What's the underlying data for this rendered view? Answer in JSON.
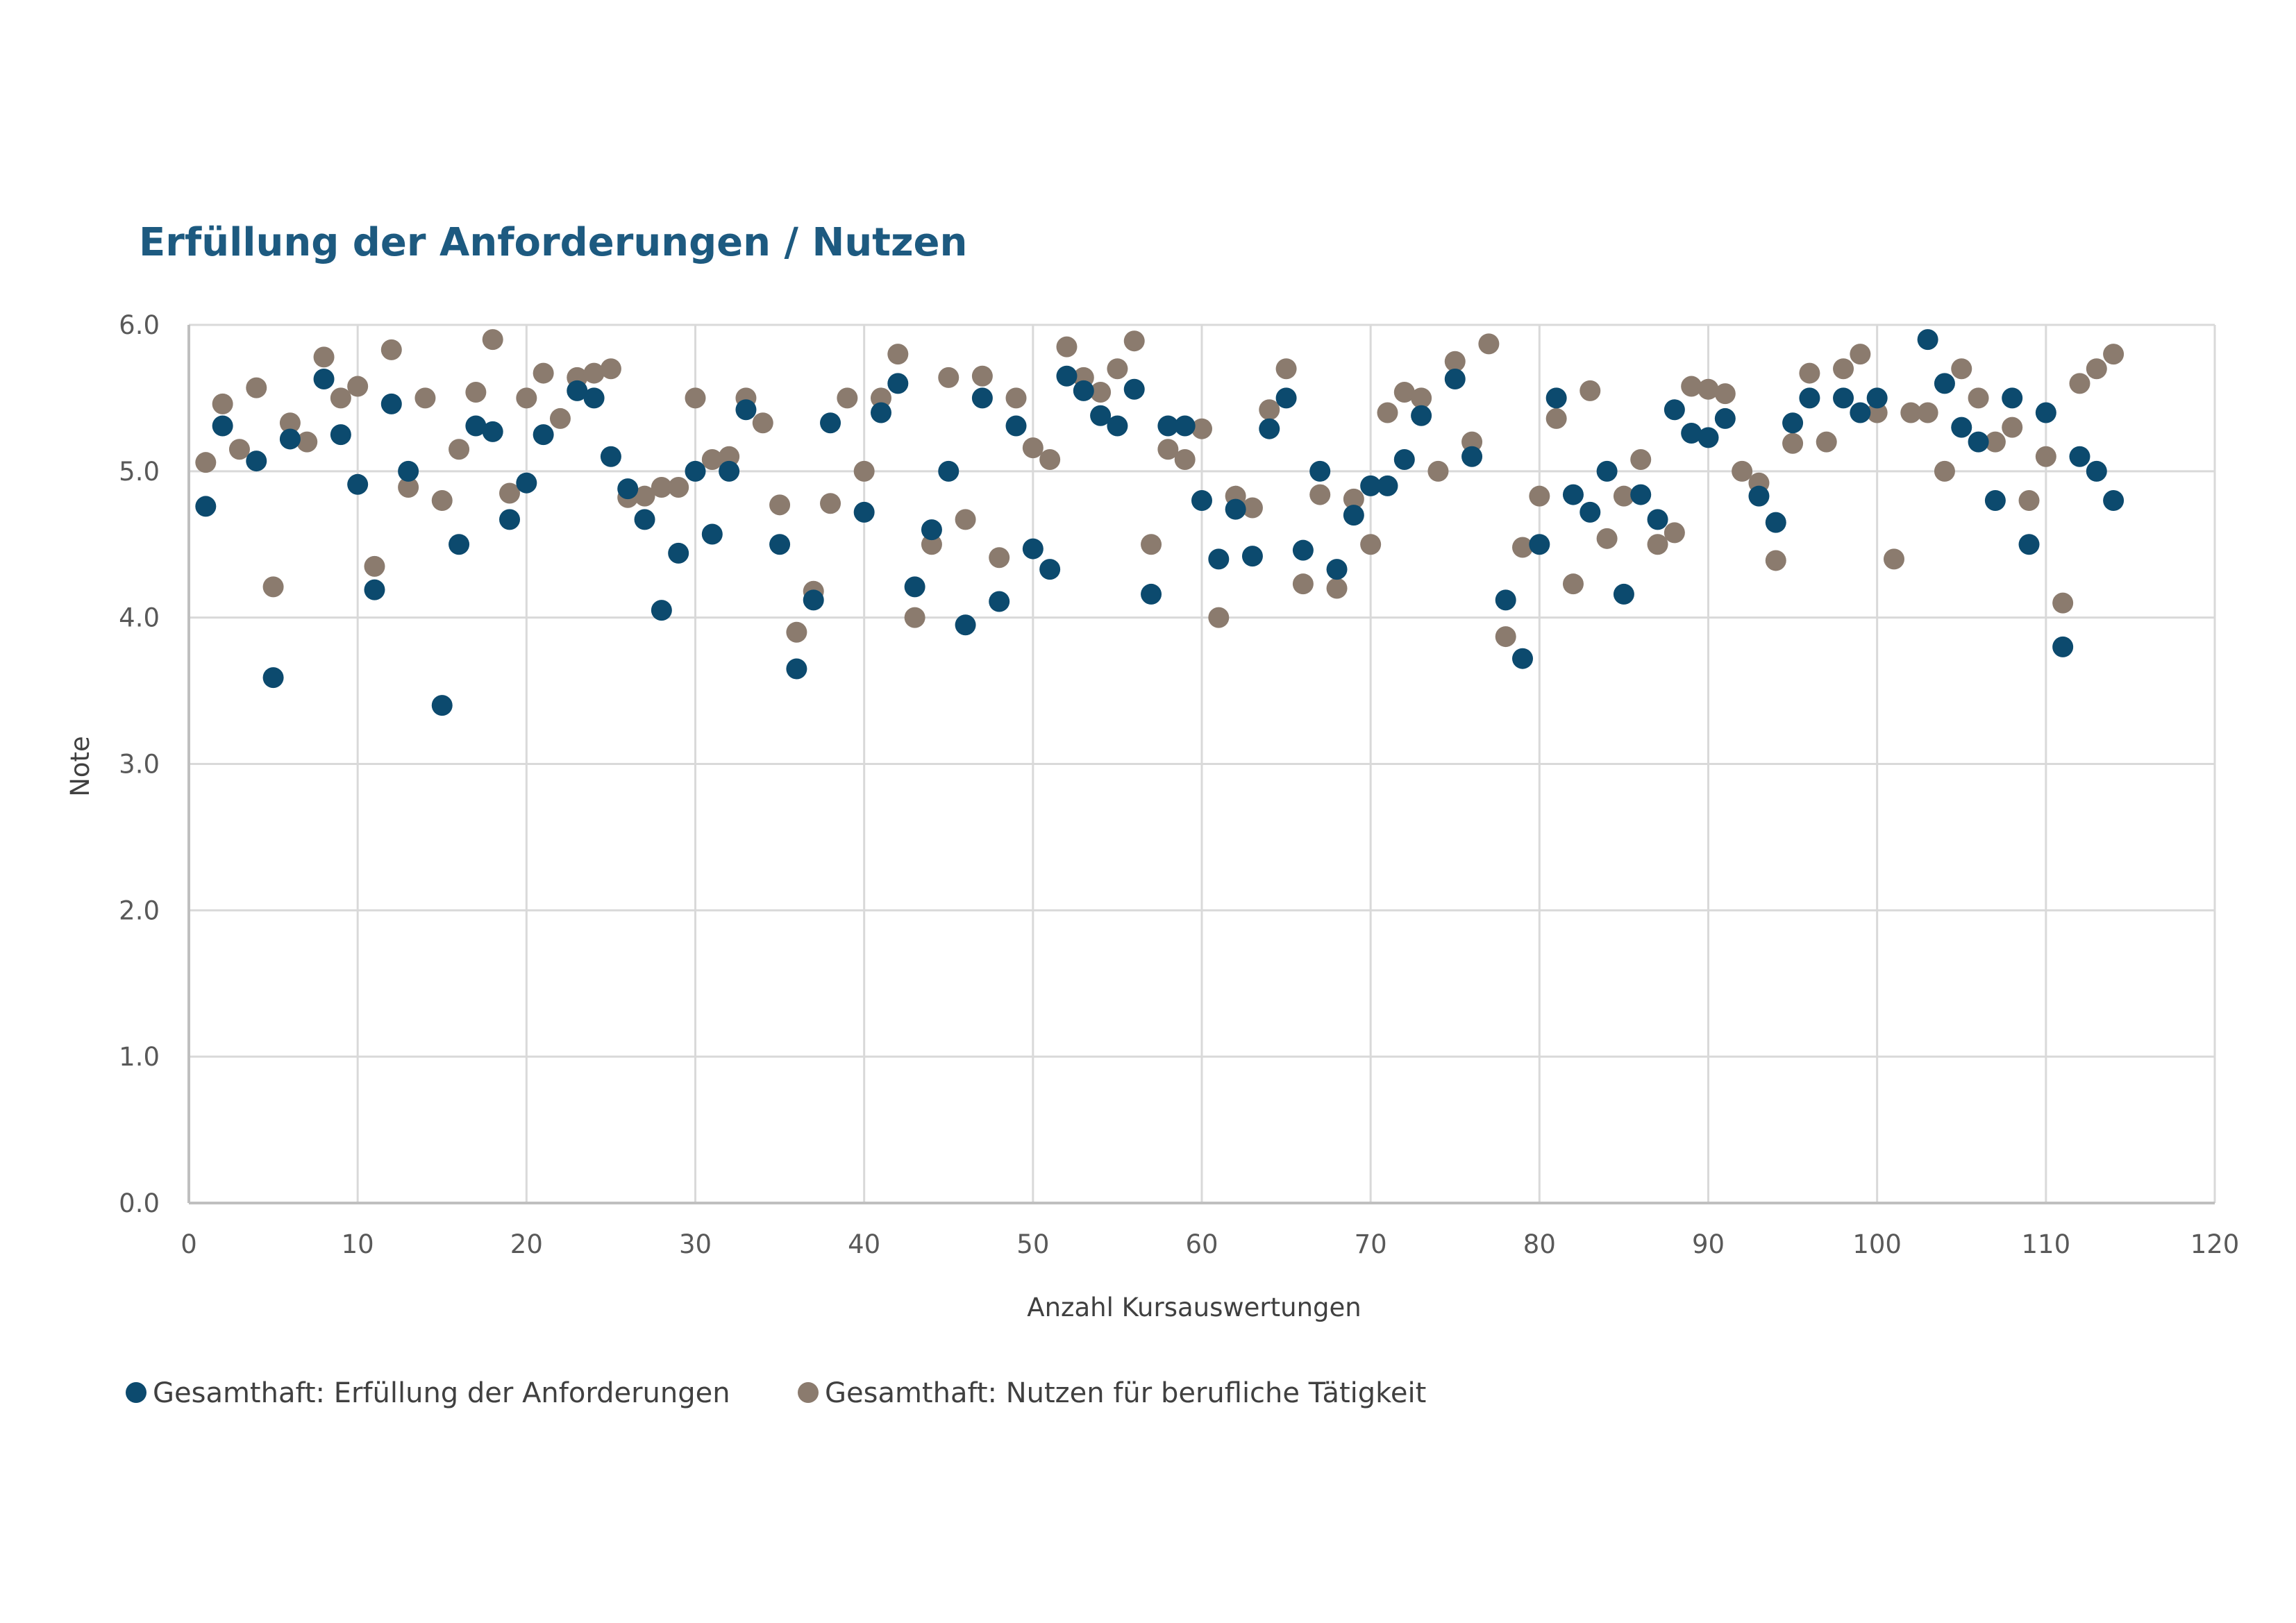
{
  "chart_data": {
    "type": "scatter",
    "title": "Erfüllung der Anforderungen / Nutzen",
    "xlabel": "Anzahl Kursauswertungen",
    "ylabel": "Note",
    "xlim": [
      0,
      120
    ],
    "ylim": [
      0.0,
      6.0
    ],
    "xticks": [
      "0",
      "10",
      "20",
      "30",
      "40",
      "50",
      "60",
      "70",
      "80",
      "90",
      "100",
      "110",
      "120"
    ],
    "yticks": [
      "0.0",
      "1.0",
      "2.0",
      "3.0",
      "4.0",
      "5.0",
      "6.0"
    ],
    "grid": true,
    "legend_position": "bottom",
    "colors": {
      "title": "#1d5a80",
      "grid": "#d9d9d9",
      "axis": "#bfbfbf"
    },
    "series": [
      {
        "name": "Gesamthaft: Erfüllung der Anforderungen",
        "color": "#0c4a6e",
        "x": [
          1,
          2,
          4,
          5,
          6,
          8,
          9,
          10,
          11,
          12,
          13,
          15,
          16,
          17,
          18,
          19,
          20,
          21,
          23,
          24,
          25,
          26,
          27,
          28,
          29,
          30,
          31,
          32,
          33,
          35,
          36,
          37,
          38,
          40,
          41,
          42,
          43,
          44,
          45,
          46,
          47,
          48,
          49,
          50,
          51,
          52,
          53,
          54,
          55,
          56,
          57,
          58,
          59,
          60,
          61,
          62,
          63,
          64,
          65,
          66,
          67,
          68,
          69,
          70,
          71,
          72,
          73,
          75,
          76,
          78,
          79,
          80,
          81,
          82,
          83,
          84,
          85,
          86,
          87,
          88,
          89,
          90,
          91,
          93,
          94,
          95,
          96,
          98,
          99,
          100,
          103,
          104,
          105,
          106,
          107,
          108,
          109,
          110,
          111,
          112,
          113,
          114
        ],
        "y": [
          4.76,
          5.31,
          5.07,
          3.59,
          5.22,
          5.63,
          5.25,
          4.91,
          4.19,
          5.46,
          5.0,
          3.4,
          4.5,
          5.31,
          5.27,
          4.67,
          4.92,
          5.25,
          5.55,
          5.5,
          5.1,
          4.88,
          4.67,
          4.05,
          4.44,
          5.0,
          4.57,
          5.0,
          5.42,
          4.5,
          3.65,
          4.12,
          5.33,
          4.72,
          5.4,
          5.6,
          4.21,
          4.6,
          5.0,
          3.95,
          5.5,
          4.11,
          5.31,
          4.47,
          4.33,
          5.65,
          5.55,
          5.38,
          5.31,
          5.56,
          4.16,
          5.31,
          5.31,
          4.8,
          4.4,
          4.74,
          4.42,
          5.29,
          5.5,
          4.46,
          5.0,
          4.33,
          4.7,
          4.9,
          4.9,
          5.08,
          5.38,
          5.63,
          5.1,
          4.12,
          3.72,
          4.5,
          5.5,
          4.84,
          4.72,
          5.0,
          4.16,
          4.84,
          4.67,
          5.42,
          5.26,
          5.23,
          5.36,
          4.83,
          4.65,
          5.33,
          5.5,
          5.5,
          5.4,
          5.5,
          5.9,
          5.6,
          5.3,
          5.2,
          4.8,
          5.5,
          4.5,
          5.4,
          3.8,
          5.1,
          5.0,
          4.8
        ]
      },
      {
        "name": "Gesamthaft: Nutzen für berufliche Tätigkeit",
        "color": "#8b7b6e",
        "x": [
          1,
          2,
          3,
          4,
          5,
          6,
          7,
          8,
          9,
          10,
          11,
          12,
          13,
          14,
          15,
          16,
          17,
          18,
          19,
          20,
          21,
          22,
          23,
          24,
          25,
          26,
          27,
          28,
          29,
          30,
          31,
          32,
          33,
          34,
          35,
          36,
          37,
          38,
          39,
          40,
          41,
          42,
          43,
          44,
          45,
          46,
          47,
          48,
          49,
          50,
          51,
          52,
          53,
          54,
          55,
          56,
          57,
          58,
          59,
          60,
          61,
          62,
          63,
          64,
          65,
          66,
          67,
          68,
          69,
          70,
          71,
          72,
          73,
          74,
          75,
          76,
          77,
          78,
          79,
          80,
          81,
          82,
          83,
          84,
          85,
          86,
          87,
          88,
          89,
          90,
          91,
          92,
          93,
          94,
          95,
          96,
          97,
          98,
          99,
          100,
          101,
          102,
          103,
          104,
          105,
          106,
          107,
          108,
          109,
          110,
          111,
          112,
          113,
          114
        ],
        "y": [
          5.06,
          5.46,
          5.15,
          5.57,
          4.21,
          5.33,
          5.2,
          5.78,
          5.5,
          5.58,
          4.35,
          5.83,
          4.89,
          5.5,
          4.8,
          5.15,
          5.54,
          5.9,
          4.85,
          5.5,
          5.67,
          5.36,
          5.64,
          5.67,
          5.7,
          4.82,
          4.83,
          4.89,
          4.89,
          5.5,
          5.08,
          5.1,
          5.5,
          5.33,
          4.77,
          3.9,
          4.18,
          4.78,
          5.5,
          5.0,
          5.5,
          5.8,
          4.0,
          4.5,
          5.64,
          4.67,
          5.65,
          4.41,
          5.5,
          5.16,
          5.08,
          5.85,
          5.64,
          5.54,
          5.7,
          5.89,
          4.5,
          5.15,
          5.08,
          5.29,
          4.0,
          4.83,
          4.75,
          5.42,
          5.7,
          4.23,
          4.84,
          4.2,
          4.81,
          4.5,
          5.4,
          5.54,
          5.5,
          5.0,
          5.75,
          5.2,
          5.87,
          3.87,
          4.48,
          4.83,
          5.36,
          4.23,
          5.55,
          4.54,
          4.83,
          5.08,
          4.5,
          4.58,
          5.58,
          5.56,
          5.53,
          5.0,
          4.92,
          4.39,
          5.19,
          5.67,
          5.2,
          5.7,
          5.8,
          5.4,
          4.4,
          5.4,
          5.4,
          5.0,
          5.7,
          5.5,
          5.2,
          5.3,
          4.8,
          5.1,
          4.1,
          5.6,
          5.7,
          5.8
        ]
      }
    ]
  }
}
